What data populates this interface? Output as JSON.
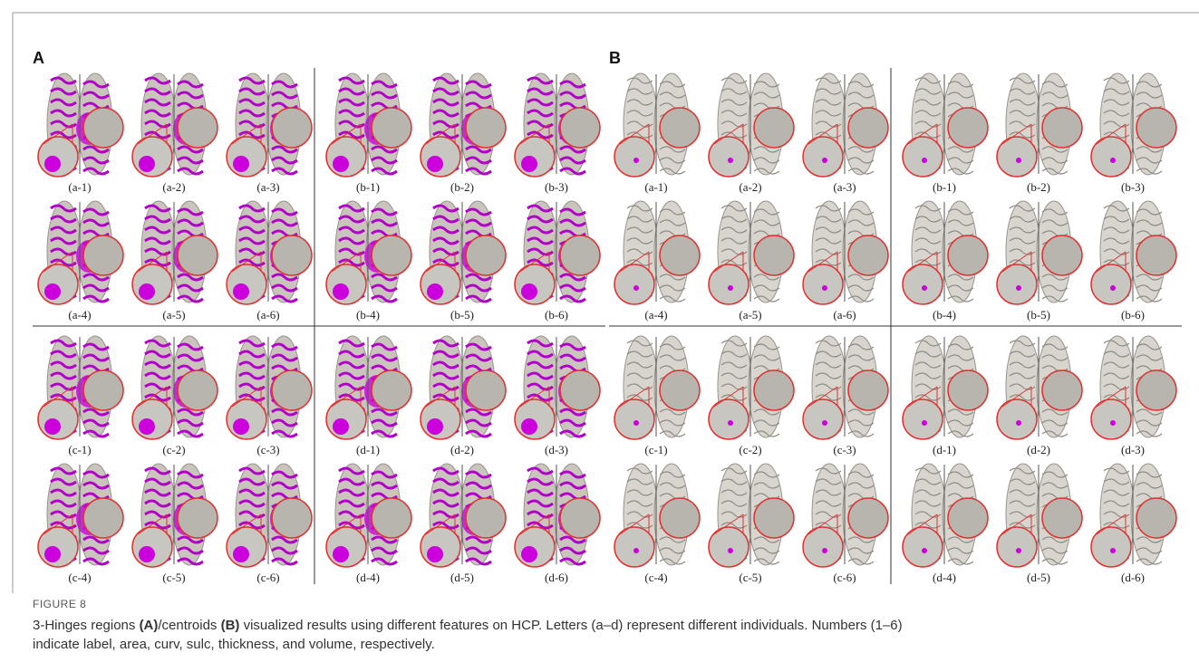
{
  "figure": {
    "panels": [
      {
        "label": "A",
        "images": [
          "(a-1)",
          "(a-2)",
          "(a-3)",
          "(a-4)",
          "(a-5)",
          "(a-6)",
          "(b-1)",
          "(b-2)",
          "(b-3)",
          "(b-4)",
          "(b-5)",
          "(b-6)",
          "(c-1)",
          "(c-2)",
          "(c-3)",
          "(c-4)",
          "(c-5)",
          "(c-6)",
          "(d-1)",
          "(d-2)",
          "(d-3)",
          "(d-4)",
          "(d-5)",
          "(d-6)"
        ]
      },
      {
        "label": "B",
        "images": [
          "(a-1)",
          "(a-2)",
          "(a-3)",
          "(a-4)",
          "(a-5)",
          "(a-6)",
          "(b-1)",
          "(b-2)",
          "(b-3)",
          "(b-4)",
          "(b-5)",
          "(b-6)",
          "(c-1)",
          "(c-2)",
          "(c-3)",
          "(c-4)",
          "(c-5)",
          "(c-6)",
          "(d-1)",
          "(d-2)",
          "(d-3)",
          "(d-4)",
          "(d-5)",
          "(d-6)"
        ]
      }
    ],
    "figure_label": "FIGURE 8",
    "caption": {
      "line1": [
        "3-Hinges regions ",
        "(A)",
        "/centroids ",
        "(B)",
        " visualized results using different features on HCP. Letters (a–d) represent different individuals. Numbers (1–6)"
      ],
      "line2": "indicate label, area, curv, sulc, thickness, and volume, respectively."
    }
  }
}
